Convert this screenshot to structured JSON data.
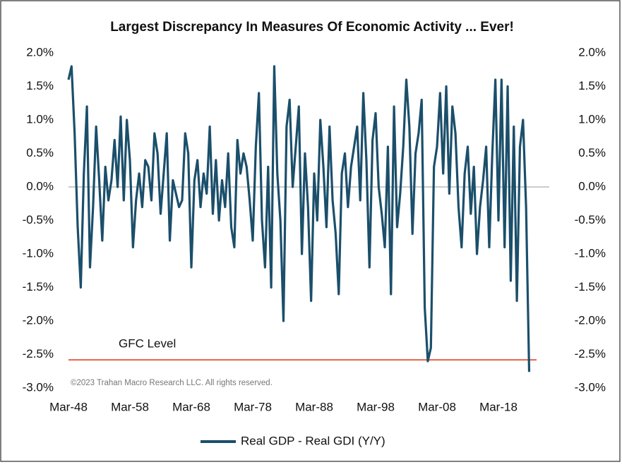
{
  "chart_data": {
    "type": "line",
    "title": "Largest Discrepancy In Measures Of Economic Activity ... Ever!",
    "source": "©2023 Trahan Macro Research LLC. All rights reserved.",
    "categories": [
      "Mar-48",
      null,
      null,
      null,
      null,
      null,
      null,
      null,
      null,
      null,
      null,
      null,
      null,
      null,
      null,
      null,
      null,
      null,
      null,
      null,
      "Mar-58",
      null,
      null,
      null,
      null,
      null,
      null,
      null,
      null,
      null,
      null,
      null,
      null,
      null,
      null,
      null,
      null,
      null,
      null,
      null,
      "Mar-68",
      null,
      null,
      null,
      null,
      null,
      null,
      null,
      null,
      null,
      null,
      null,
      null,
      null,
      null,
      null,
      null,
      null,
      null,
      null,
      "Mar-78",
      null,
      null,
      null,
      null,
      null,
      null,
      null,
      null,
      null,
      null,
      null,
      null,
      null,
      null,
      null,
      null,
      null,
      null,
      null,
      "Mar-88",
      null,
      null,
      null,
      null,
      null,
      null,
      null,
      null,
      null,
      null,
      null,
      null,
      null,
      null,
      null,
      null,
      null,
      null,
      null,
      "Mar-98",
      null,
      null,
      null,
      null,
      null,
      null,
      null,
      null,
      null,
      null,
      null,
      null,
      null,
      null,
      null,
      null,
      null,
      null,
      null,
      "Mar-08",
      null,
      null,
      null,
      null,
      null,
      null,
      null,
      null,
      null,
      null,
      null,
      null,
      null,
      null,
      null,
      null,
      null,
      null,
      null,
      "Mar-18",
      null,
      null,
      null,
      null,
      null,
      null,
      null,
      null,
      null,
      null
    ],
    "series": [
      {
        "name": "Real GDP - Real GDI (Y/Y)",
        "color": "#1b4f6b",
        "values": [
          1.6,
          1.8,
          0.8,
          -0.6,
          -1.5,
          0.2,
          1.2,
          -1.2,
          -0.3,
          0.9,
          0.1,
          -0.8,
          0.3,
          -0.2,
          0.1,
          0.7,
          0.0,
          1.05,
          -0.2,
          1.0,
          0.4,
          -0.9,
          -0.2,
          0.2,
          -0.3,
          0.4,
          0.3,
          -0.2,
          0.8,
          0.5,
          -0.4,
          0.2,
          0.8,
          -0.8,
          0.1,
          -0.1,
          -0.3,
          -0.2,
          0.8,
          0.5,
          -1.2,
          0.1,
          0.4,
          -0.3,
          0.2,
          -0.1,
          0.9,
          -0.4,
          0.4,
          -0.5,
          0.1,
          -0.3,
          0.5,
          -0.6,
          -0.9,
          0.7,
          0.2,
          0.5,
          0.3,
          -0.2,
          -0.8,
          0.6,
          1.4,
          -0.5,
          -1.2,
          0.3,
          -1.5,
          1.8,
          0.2,
          -0.5,
          -2.0,
          0.9,
          1.3,
          0.0,
          0.6,
          1.2,
          -1.0,
          0.5,
          -0.3,
          -1.7,
          0.2,
          -0.5,
          1.0,
          0.3,
          -0.6,
          0.9,
          -0.2,
          -0.7,
          -1.6,
          0.2,
          0.5,
          -0.3,
          0.3,
          0.6,
          0.9,
          -0.2,
          1.4,
          0.4,
          -1.2,
          0.7,
          1.1,
          0.0,
          -0.4,
          -0.9,
          0.6,
          -1.6,
          1.2,
          -0.6,
          -0.1,
          0.6,
          1.6,
          0.9,
          -0.7,
          0.5,
          0.8,
          1.3,
          -1.8,
          -2.6,
          -2.4,
          0.3,
          0.6,
          1.4,
          0.2,
          1.5,
          -0.1,
          1.2,
          0.8,
          -0.3,
          -0.9,
          0.2,
          0.6,
          -0.4,
          0.3,
          -1.0,
          -0.3,
          0.1,
          0.6,
          -0.9,
          0.5,
          1.6,
          -0.5,
          1.6,
          -0.9,
          1.5,
          -1.4,
          0.9,
          -1.7,
          0.6,
          1.0,
          -0.3,
          -2.76
        ]
      }
    ],
    "reference_lines": [
      {
        "value": -2.58,
        "label": "GFC Level",
        "color": "#e8614a"
      }
    ],
    "zero_line": true,
    "ylim": [
      -3,
      2
    ],
    "yticks": [
      {
        "value": 2,
        "label": "2.0%"
      },
      {
        "value": 1.5,
        "label": "1.5%"
      },
      {
        "value": 1,
        "label": "1.0%"
      },
      {
        "value": 0.5,
        "label": "0.5%"
      },
      {
        "value": 0,
        "label": "0.0%"
      },
      {
        "value": -0.5,
        "label": "-0.5%"
      },
      {
        "value": -1,
        "label": "-1.0%"
      },
      {
        "value": -1.5,
        "label": "-1.5%"
      },
      {
        "value": -2,
        "label": "-2.0%"
      },
      {
        "value": -2.5,
        "label": "-2.5%"
      },
      {
        "value": -3,
        "label": "-3.0%"
      }
    ],
    "y2lim": [
      -3,
      2
    ],
    "y2ticks": [
      {
        "value": 2,
        "label": "2.0%"
      },
      {
        "value": 1.5,
        "label": "1.5%"
      },
      {
        "value": 1,
        "label": "1.0%"
      },
      {
        "value": 0.5,
        "label": "0.5%"
      },
      {
        "value": 0,
        "label": "0.0%"
      },
      {
        "value": -0.5,
        "label": "-0.5%"
      },
      {
        "value": -1,
        "label": "-1.0%"
      },
      {
        "value": -1.5,
        "label": "-1.5%"
      },
      {
        "value": -2,
        "label": "-2.0%"
      },
      {
        "value": -2.5,
        "label": "-2.5%"
      },
      {
        "value": -3,
        "label": "-3.0%"
      }
    ],
    "legend": "bottom"
  }
}
